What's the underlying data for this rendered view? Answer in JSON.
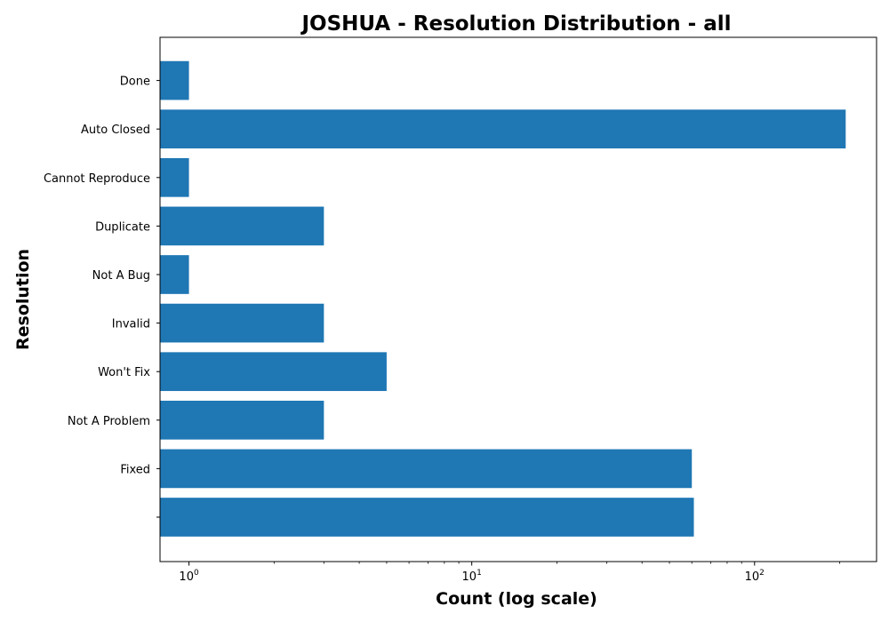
{
  "chart_data": {
    "type": "bar",
    "orientation": "horizontal",
    "title": "JOSHUA - Resolution Distribution - all",
    "xlabel": "Count (log scale)",
    "ylabel": "Resolution",
    "x_scale": "log",
    "xlim": [
      0.79,
      270
    ],
    "x_ticks": [
      {
        "value": 1,
        "base": "10",
        "exp": "0"
      },
      {
        "value": 10,
        "base": "10",
        "exp": "1"
      },
      {
        "value": 100,
        "base": "10",
        "exp": "2"
      }
    ],
    "categories": [
      "",
      "Fixed",
      "Not A Problem",
      "Won't Fix",
      "Invalid",
      "Not A Bug",
      "Duplicate",
      "Cannot Reproduce",
      "Auto Closed",
      "Done"
    ],
    "values": [
      61,
      60,
      3,
      5,
      3,
      1,
      3,
      1,
      210,
      1
    ],
    "bar_color": "#1f77b4",
    "grid": false,
    "legend": "none"
  }
}
